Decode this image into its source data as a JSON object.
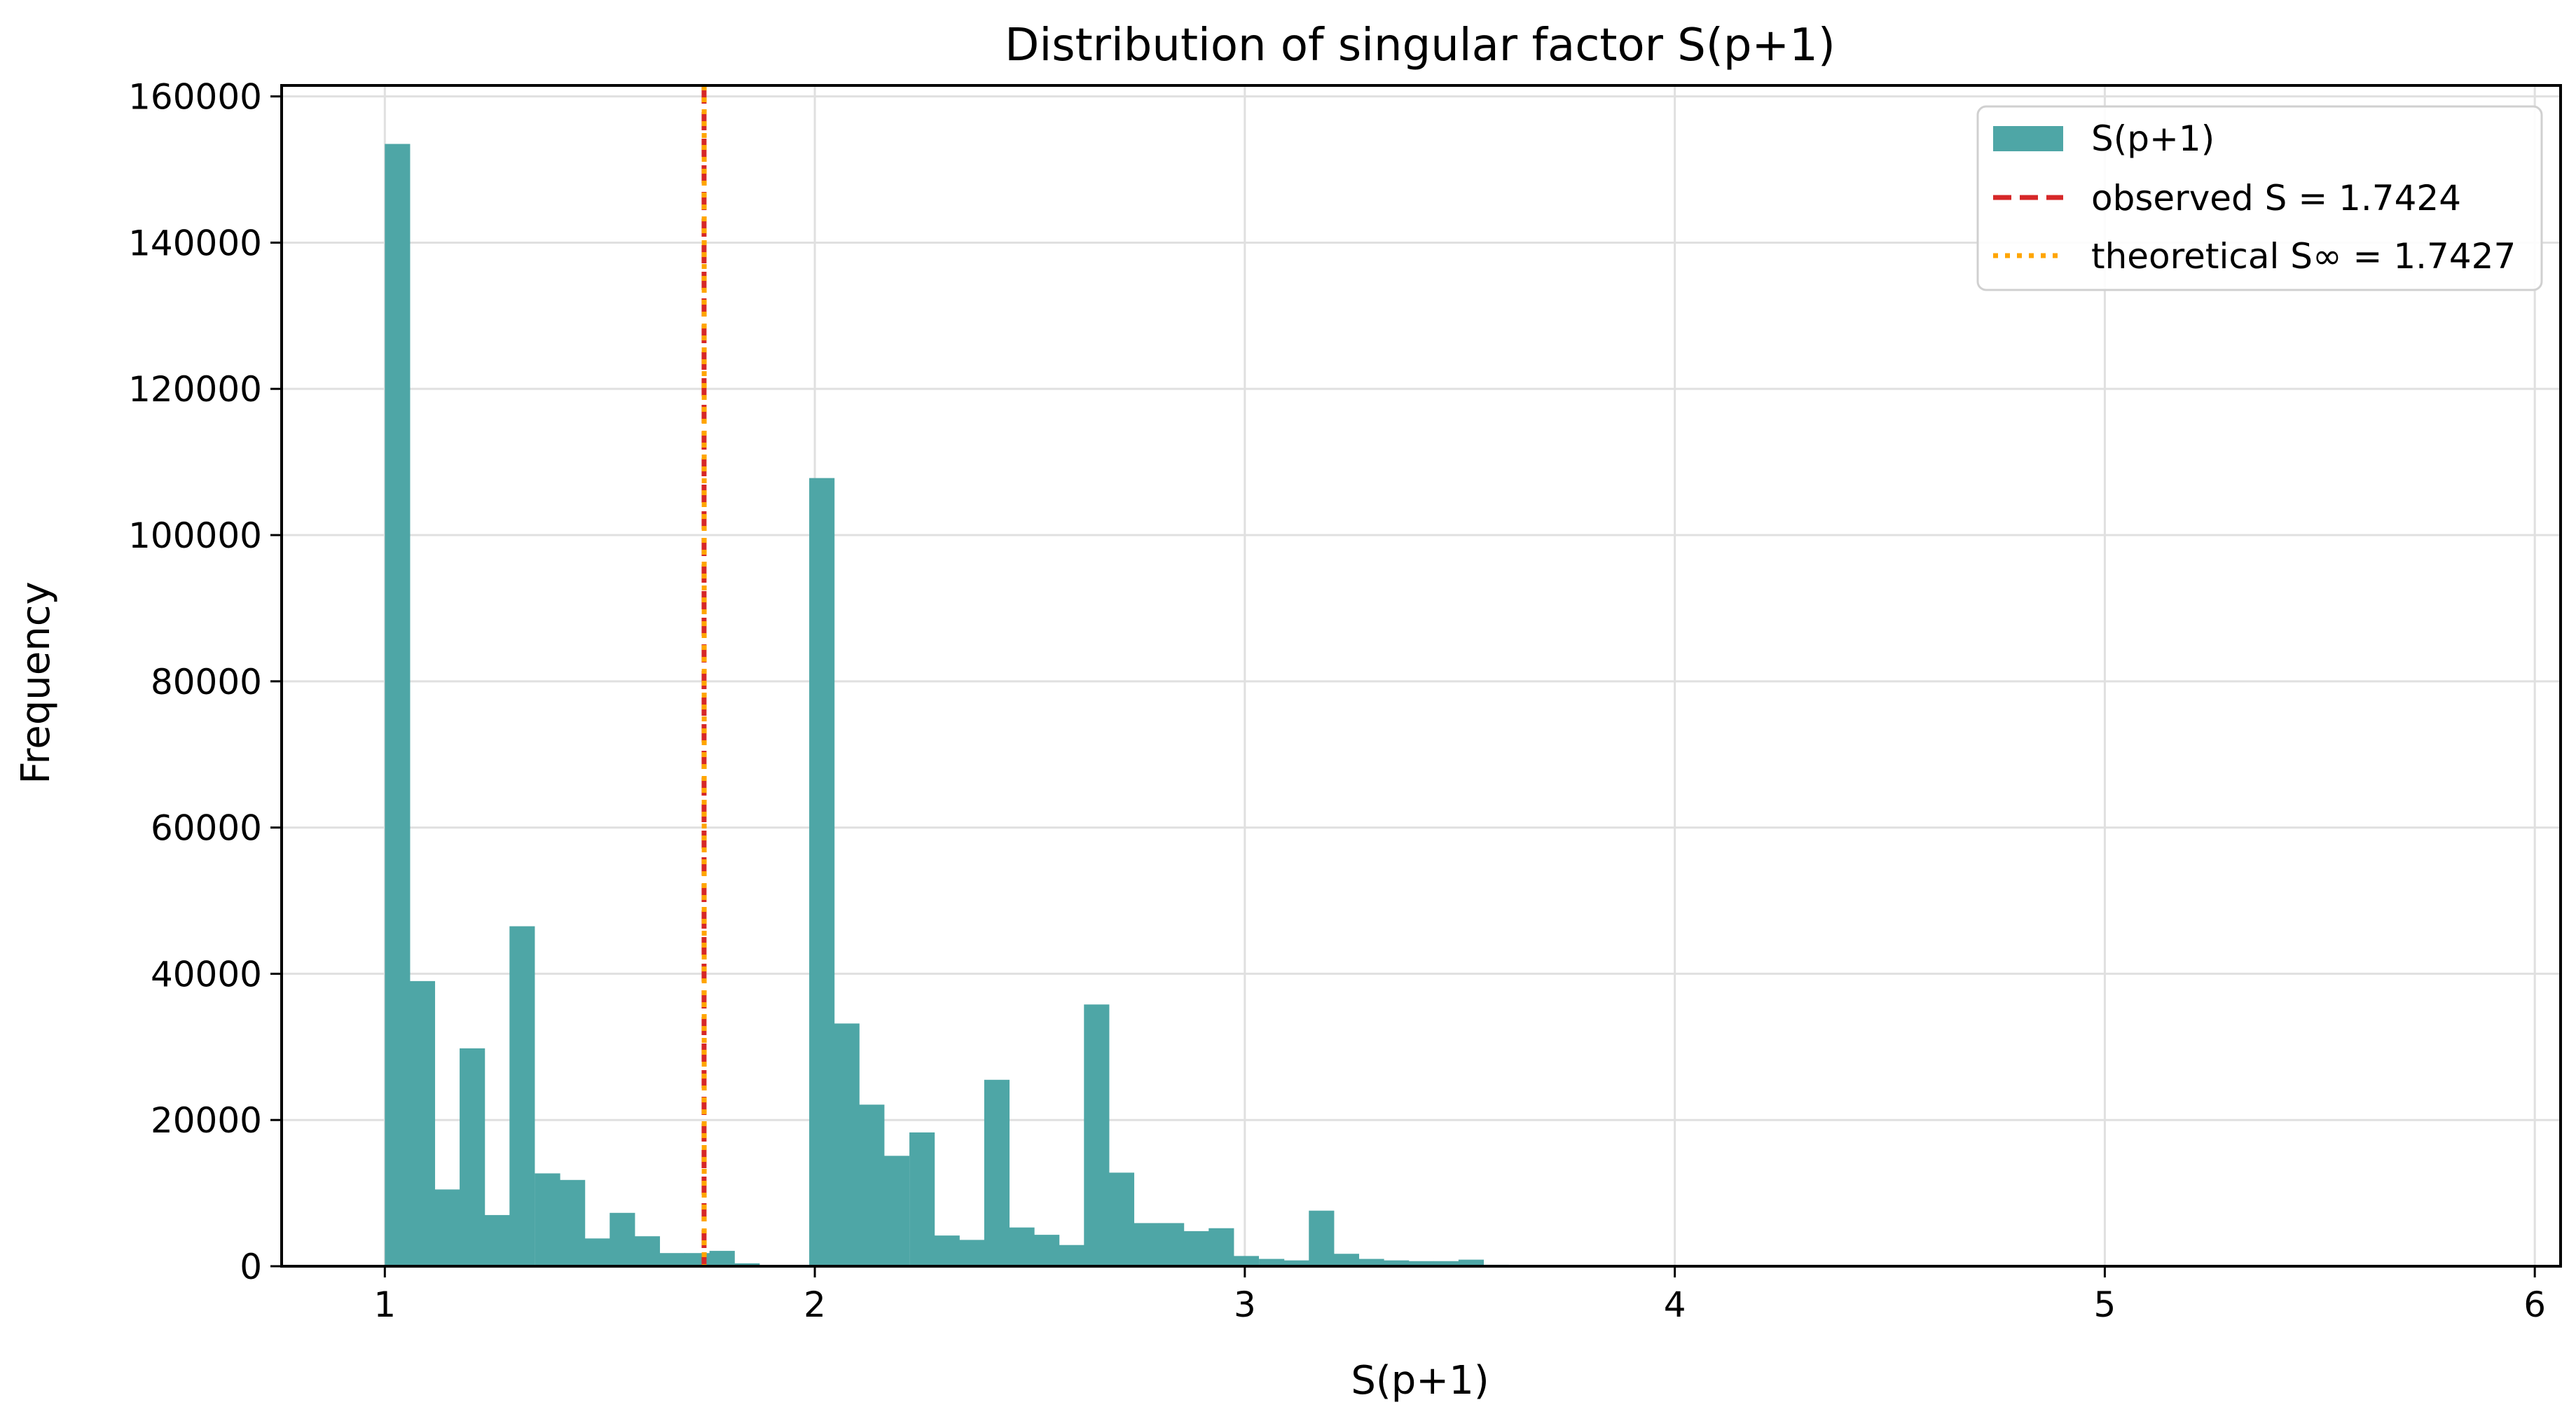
{
  "chart_data": {
    "type": "bar",
    "title": "Distribution of singular factor S(p+1)",
    "xlabel": "S(p+1)",
    "ylabel": "Frequency",
    "xlim": [
      0.76,
      6.06
    ],
    "ylim": [
      0,
      161500
    ],
    "x_ticks": [
      "1",
      "2",
      "3",
      "4",
      "5",
      "6"
    ],
    "y_ticks": [
      "0",
      "20000",
      "40000",
      "60000",
      "80000",
      "100000",
      "120000",
      "140000",
      "160000"
    ],
    "grid": true,
    "legend_position": "top-right",
    "bin_width": 0.0581,
    "series": [
      {
        "name": "S(p+1)",
        "color": "#4ea6a6",
        "x": [
          1.029,
          1.087,
          1.145,
          1.203,
          1.261,
          1.319,
          1.378,
          1.436,
          1.494,
          1.552,
          1.61,
          1.668,
          1.726,
          1.784,
          1.842,
          1.9,
          1.958,
          2.016,
          2.074,
          2.132,
          2.19,
          2.249,
          2.307,
          2.365,
          2.423,
          2.481,
          2.539,
          2.597,
          2.655,
          2.713,
          2.771,
          2.829,
          2.887,
          2.945,
          3.003,
          3.062,
          3.12,
          3.178,
          3.236,
          3.294,
          3.352,
          3.41,
          3.468,
          3.526,
          3.584
        ],
        "values": [
          153500,
          39000,
          10500,
          29800,
          7000,
          46500,
          12700,
          11800,
          3800,
          7300,
          4100,
          1800,
          1800,
          2100,
          400,
          0,
          0,
          107800,
          33200,
          22100,
          15100,
          18300,
          4200,
          3600,
          25500,
          5300,
          4300,
          2900,
          35800,
          12800,
          5900,
          5900,
          4800,
          5200,
          1400,
          1000,
          800,
          7600,
          1700,
          1000,
          800,
          700,
          700,
          900,
          200
        ]
      }
    ],
    "vlines": [
      {
        "name": "observed S = 1.7424",
        "x": 1.7424,
        "color": "#d62728",
        "style": "dashed"
      },
      {
        "name": "theoretical S∞ = 1.7427",
        "x": 1.7427,
        "color": "#ffa500",
        "style": "dotted"
      }
    ],
    "colors": {
      "bar": "#4ea6a6",
      "observed": "#d62728",
      "theoretical": "#ffa500"
    }
  }
}
